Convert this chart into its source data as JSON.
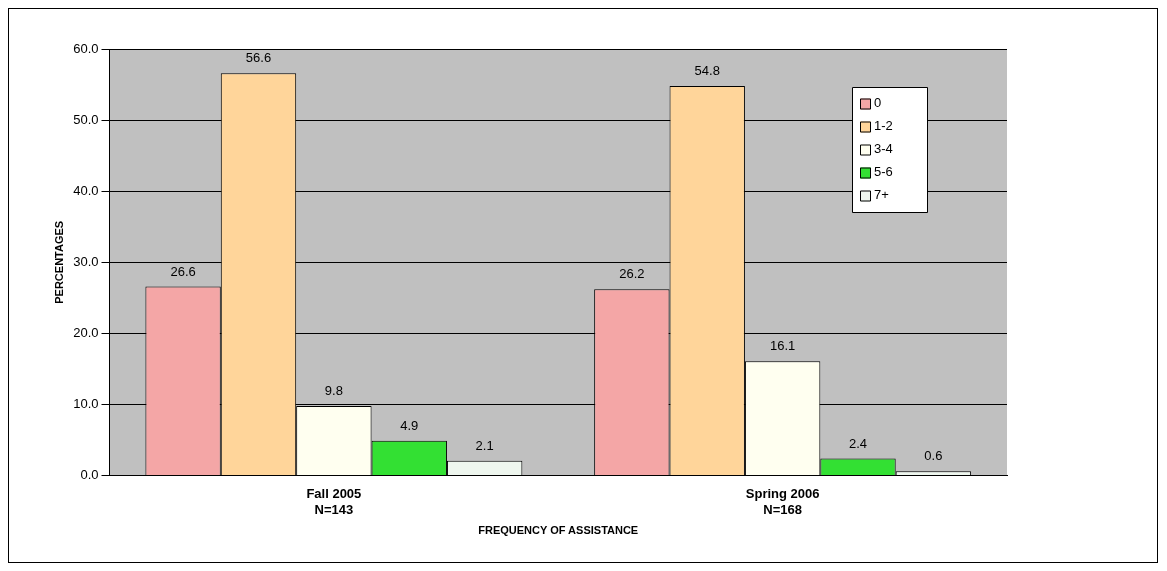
{
  "chart_data": {
    "type": "bar",
    "categories": [
      "Fall 2005\nN=143",
      "Spring 2006\nN=168"
    ],
    "series": [
      {
        "name": "0",
        "color": "#f4a6a6",
        "values": [
          26.6,
          26.2
        ]
      },
      {
        "name": "1-2",
        "color": "#ffd59a",
        "values": [
          56.6,
          54.8
        ]
      },
      {
        "name": "3-4",
        "color": "#fffff0",
        "values": [
          9.8,
          16.1
        ]
      },
      {
        "name": "5-6",
        "color": "#33e033",
        "values": [
          4.9,
          2.4
        ]
      },
      {
        "name": "7+",
        "color": "#eef6ee",
        "values": [
          2.1,
          0.6
        ]
      }
    ],
    "xlabel": "FREQUENCY OF ASSISTANCE",
    "ylabel": "PERCENTAGES",
    "ylim": [
      0,
      60
    ],
    "yticks": [
      {
        "value": 0,
        "label": "0.0"
      },
      {
        "value": 10,
        "label": "10.0"
      },
      {
        "value": 20,
        "label": "20.0"
      },
      {
        "value": 30,
        "label": "30.0"
      },
      {
        "value": 40,
        "label": "40.0"
      },
      {
        "value": 50,
        "label": "50.0"
      },
      {
        "value": 60,
        "label": "60.0"
      }
    ],
    "grid": "y",
    "legend": "top right",
    "data_labels": true
  }
}
